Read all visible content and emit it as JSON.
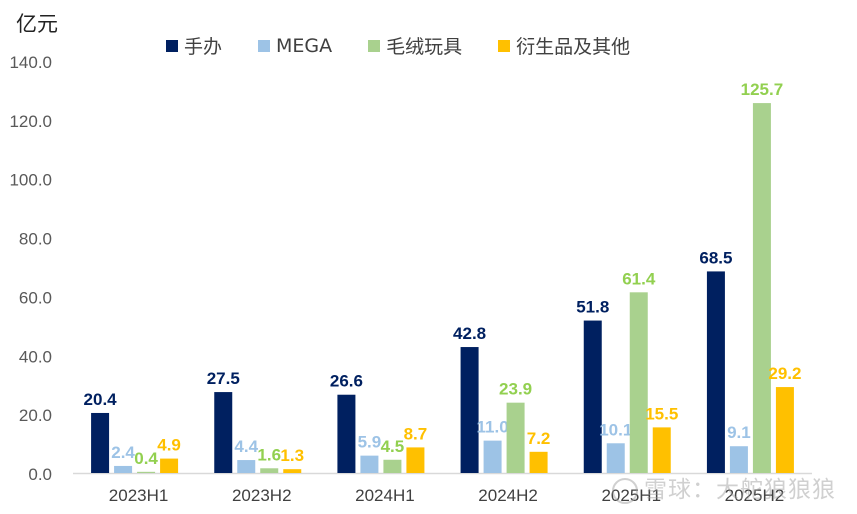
{
  "unit_label": "亿元",
  "legend": [
    {
      "label": "手办",
      "color": "#002060"
    },
    {
      "label": "MEGA",
      "color": "#9DC3E6"
    },
    {
      "label": "毛绒玩具",
      "color": "#A9D18E"
    },
    {
      "label": "衍生品及其他",
      "color": "#FFC000"
    }
  ],
  "watermark": "雪球：大舵狼狼狼",
  "chart_data": {
    "type": "bar",
    "title": "",
    "xlabel": "",
    "ylabel": "亿元",
    "ylim": [
      0,
      140
    ],
    "yticks": [
      0,
      20,
      40,
      60,
      80,
      100,
      120,
      140
    ],
    "ytick_labels": [
      "0.0",
      "20.0",
      "40.0",
      "60.0",
      "80.0",
      "100.0",
      "120.0",
      "140.0"
    ],
    "grid": false,
    "legend_position": "top",
    "categories": [
      "2023H1",
      "2023H2",
      "2024H1",
      "2024H2",
      "2025H1",
      "2025H2"
    ],
    "series": [
      {
        "name": "手办",
        "color": "#002060",
        "label_color": "#002060",
        "values": [
          20.4,
          27.5,
          26.6,
          42.8,
          51.8,
          68.5
        ]
      },
      {
        "name": "MEGA",
        "color": "#9DC3E6",
        "label_color": "#9DC3E6",
        "values": [
          2.4,
          4.4,
          5.9,
          11.0,
          10.1,
          9.1
        ]
      },
      {
        "name": "毛绒玩具",
        "color": "#A9D18E",
        "label_color": "#92D050",
        "values": [
          0.4,
          1.6,
          4.5,
          23.9,
          61.4,
          125.7
        ]
      },
      {
        "name": "衍生品及其他",
        "color": "#FFC000",
        "label_color": "#FFC000",
        "values": [
          4.9,
          1.3,
          8.7,
          7.2,
          15.5,
          29.2
        ]
      }
    ]
  }
}
